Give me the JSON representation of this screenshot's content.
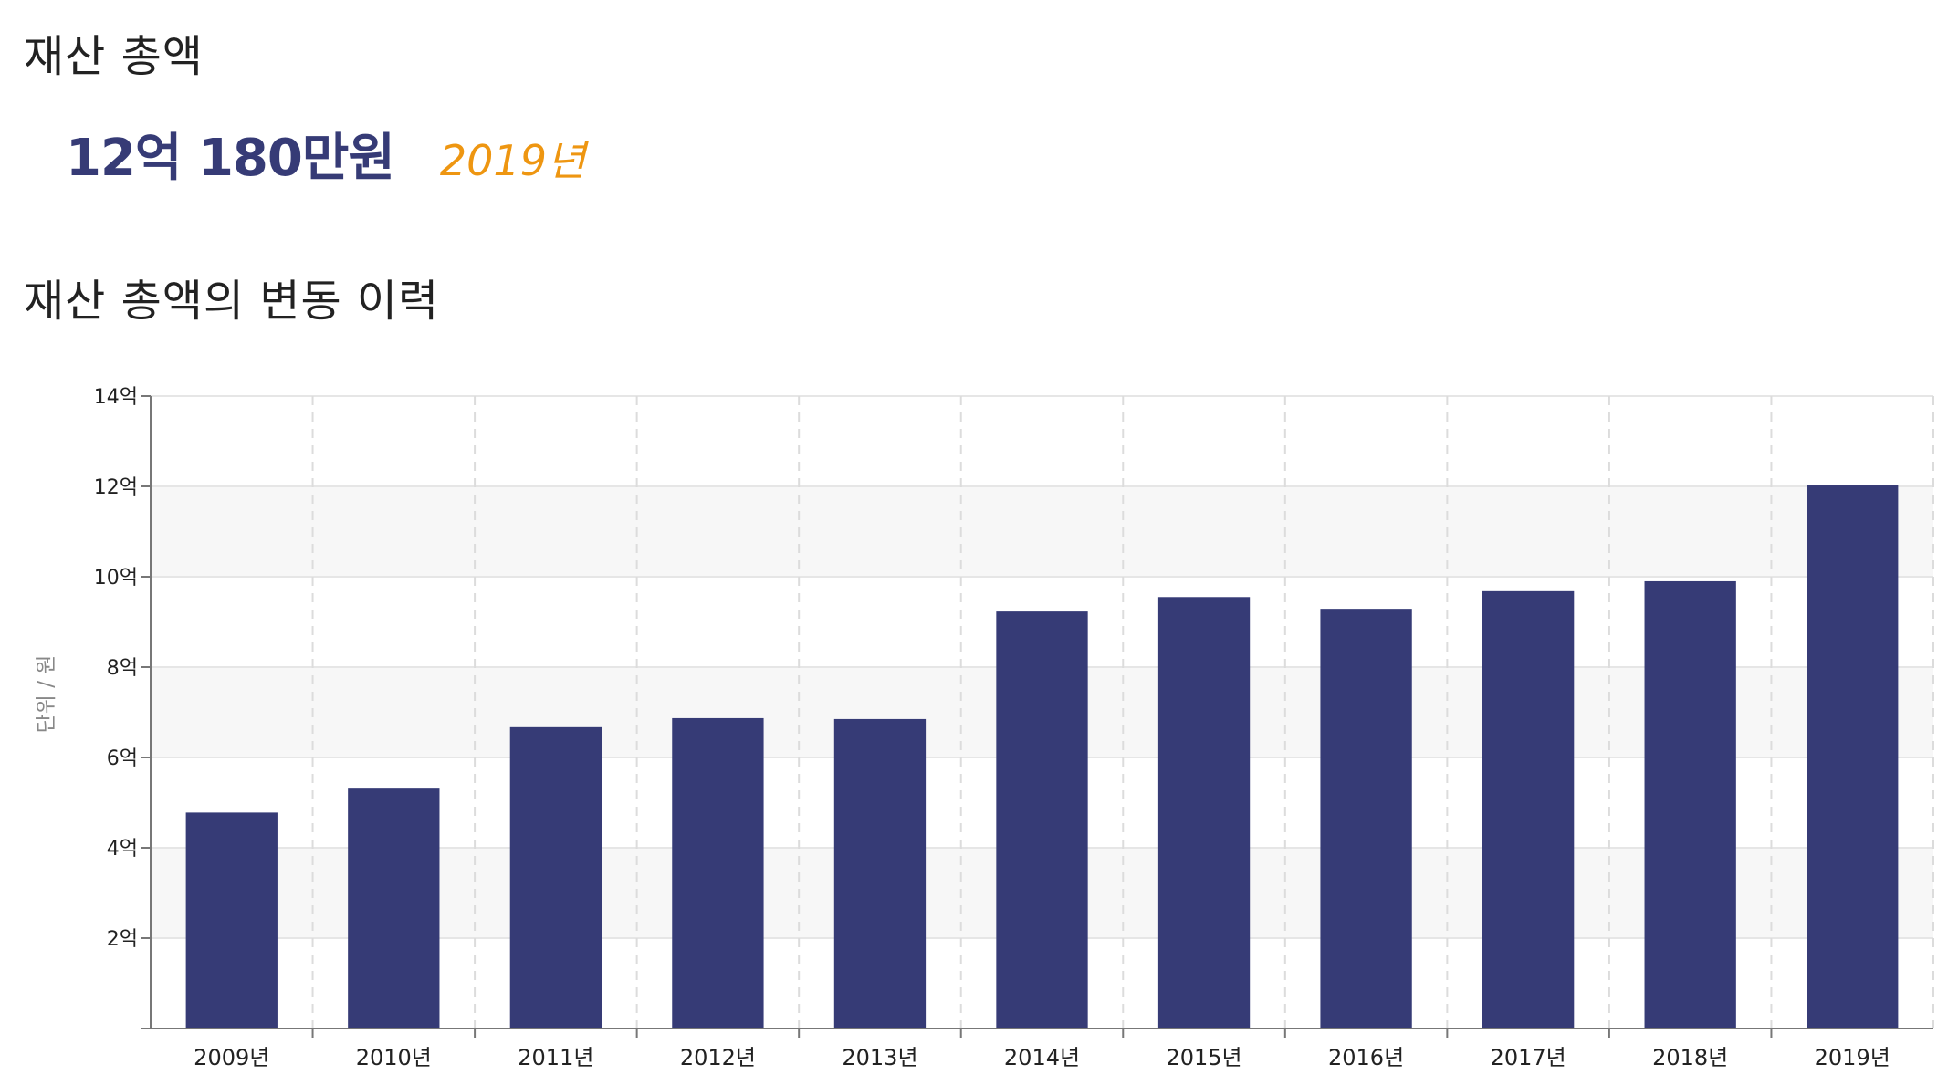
{
  "page": {
    "title": "재산 총액",
    "total_amount": "12억 180만원",
    "total_year": "2019년",
    "history_title": "재산 총액의 변동 이력"
  },
  "colors": {
    "bar": "#363b76",
    "accent": "#ee9611",
    "grid": "#e6e6e6",
    "band": "#f7f7f7",
    "axis": "#777777"
  },
  "chart_data": {
    "type": "bar",
    "categories": [
      "2009년",
      "2010년",
      "2011년",
      "2012년",
      "2013년",
      "2014년",
      "2015년",
      "2016년",
      "2017년",
      "2018년",
      "2019년"
    ],
    "values": [
      4.78,
      5.31,
      6.67,
      6.87,
      6.85,
      9.23,
      9.55,
      9.29,
      9.68,
      9.9,
      12.02
    ],
    "value_unit": "억",
    "ylim": [
      0,
      14
    ],
    "yticks": [
      2,
      4,
      6,
      8,
      10,
      12,
      14
    ],
    "ytick_labels": [
      "2억",
      "4억",
      "6억",
      "8억",
      "10억",
      "12억",
      "14억"
    ],
    "ylabel": "단위 / 원",
    "xlabel": "",
    "grid": true,
    "legend": "none"
  }
}
